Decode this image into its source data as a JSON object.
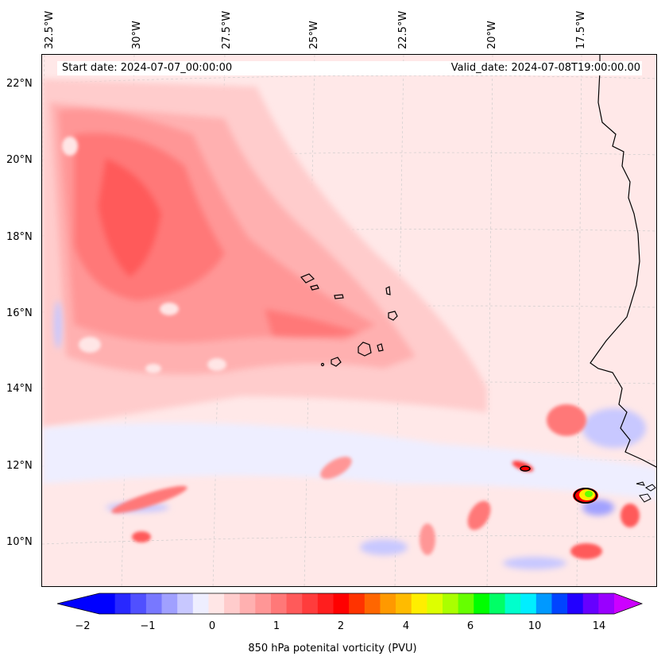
{
  "header": {
    "start_date": "Start date: 2024-07-07_00:00:00",
    "valid_date": "Valid_date: 2024-07-08T19:00:00.00"
  },
  "lon_labels": [
    "32.5°W",
    "30°W",
    "27.5°W",
    "25°W",
    "22.5°W",
    "20°W",
    "17.5°W"
  ],
  "lat_labels": [
    "22°N",
    "20°N",
    "18°N",
    "16°N",
    "14°N",
    "12°N",
    "10°N"
  ],
  "colorbar": {
    "label": "850 hPa potenital vorticity (PVU)",
    "ticks": [
      "−2",
      "−1",
      "0",
      "1",
      "2",
      "4",
      "6",
      "10",
      "14"
    ],
    "colors": [
      "#0000ff",
      "#2828ff",
      "#5050ff",
      "#7878ff",
      "#a0a0ff",
      "#c8c8ff",
      "#eeeeff",
      "#ffe6e6",
      "#ffcccc",
      "#ffb0b0",
      "#ff9696",
      "#ff7878",
      "#ff5a5a",
      "#ff3c3c",
      "#ff1e1e",
      "#ff0000",
      "#ff3300",
      "#ff6600",
      "#ff9900",
      "#ffbb00",
      "#ffee00",
      "#ddff00",
      "#aaff00",
      "#66ff00",
      "#00ff00",
      "#00ff66",
      "#00ffcc",
      "#00eeff",
      "#0099ff",
      "#0044ff",
      "#2200ff",
      "#6600ff",
      "#9900ff"
    ],
    "extend_min_color": "#0000ff",
    "extend_max_color": "#cc00ff"
  },
  "map": {
    "background_color": "#ffe8e8",
    "coastline_color": "#000000"
  }
}
